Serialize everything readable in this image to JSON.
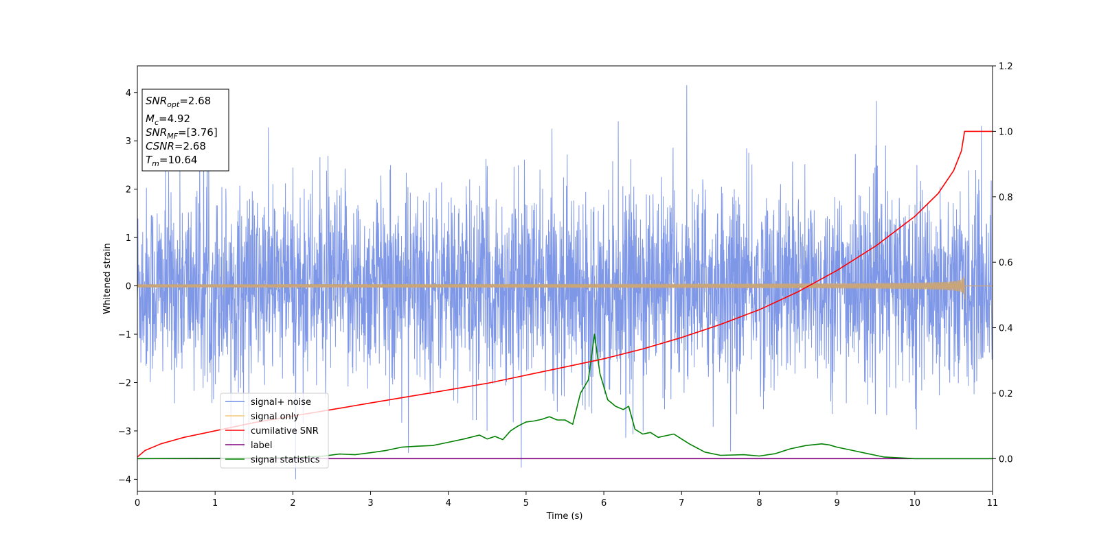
{
  "chart_data": {
    "type": "line",
    "xlabel": "Time (s)",
    "ylabel": "Whitened strain",
    "xlim": [
      0,
      11
    ],
    "ylim_left": [
      -4.25,
      4.55
    ],
    "ylim_right": [
      -0.1,
      1.2
    ],
    "x_ticks": [
      "0",
      "1",
      "2",
      "3",
      "4",
      "5",
      "6",
      "7",
      "8",
      "9",
      "10",
      "11"
    ],
    "y_left_ticks": [
      "−4",
      "−3",
      "−2",
      "−1",
      "0",
      "1",
      "2",
      "3",
      "4"
    ],
    "y_left_tick_values": [
      -4,
      -3,
      -2,
      -1,
      0,
      1,
      2,
      3,
      4
    ],
    "y_right_ticks": [
      "0.0",
      "0.2",
      "0.4",
      "0.6",
      "0.8",
      "1.0",
      "1.2"
    ],
    "y_right_tick_values": [
      0.0,
      0.2,
      0.4,
      0.6,
      0.8,
      1.0,
      1.2
    ],
    "info_box": {
      "snr_opt_base": "SNR",
      "snr_opt_sub": "opt",
      "snr_opt_value": "=2.68",
      "mc_base": "M",
      "mc_sub": "c",
      "mc_value": "=4.92",
      "snr_mf_base": "SNR",
      "snr_mf_sub": "MF",
      "snr_mf_value": "=[3.76]",
      "csnr_base": "CSNR",
      "csnr_value": "=2.68",
      "tm_base": "T",
      "tm_sub": "m",
      "tm_value": "=10.64"
    },
    "legend": [
      {
        "label": "signal+ noise",
        "color": "#6f8de6"
      },
      {
        "label": "signal only",
        "color": "#f5c97a"
      },
      {
        "label": "cumilative SNR",
        "color": "#ff0000"
      },
      {
        "label": "label",
        "color": "#800080"
      },
      {
        "label": "signal statistics",
        "color": "#008000"
      }
    ],
    "legend_position": "lower-left",
    "series": [
      {
        "name": "signal+ noise",
        "axis": "left",
        "color": "#7891e6",
        "noise_std": 1.0,
        "x_range": [
          0,
          11
        ]
      },
      {
        "name": "signal only",
        "axis": "left",
        "color": "#c9a57a",
        "merger_time": 10.64,
        "envelope_end": 0.28
      },
      {
        "name": "cumilative SNR",
        "axis": "right",
        "color": "#ff0000",
        "x": [
          0,
          0.1,
          0.3,
          0.6,
          1.0,
          1.5,
          2.0,
          2.5,
          3.0,
          3.5,
          4.0,
          4.5,
          5.0,
          5.5,
          6.0,
          6.5,
          7.0,
          7.5,
          8.0,
          8.5,
          9.0,
          9.5,
          10.0,
          10.3,
          10.5,
          10.6,
          10.64,
          11.0
        ],
        "y": [
          0.005,
          0.025,
          0.045,
          0.065,
          0.085,
          0.11,
          0.13,
          0.15,
          0.17,
          0.19,
          0.21,
          0.23,
          0.255,
          0.28,
          0.305,
          0.335,
          0.37,
          0.41,
          0.455,
          0.51,
          0.575,
          0.65,
          0.74,
          0.81,
          0.88,
          0.94,
          1.0,
          1.0
        ]
      },
      {
        "name": "label",
        "axis": "right",
        "color": "#800080",
        "x": [
          0,
          11
        ],
        "y": [
          0,
          0
        ]
      },
      {
        "name": "signal statistics",
        "axis": "right",
        "color": "#008000",
        "x": [
          0,
          1.0,
          2.0,
          2.4,
          2.6,
          2.8,
          3.0,
          3.2,
          3.4,
          3.6,
          3.8,
          4.0,
          4.2,
          4.4,
          4.5,
          4.6,
          4.7,
          4.8,
          4.9,
          5.0,
          5.1,
          5.2,
          5.3,
          5.4,
          5.5,
          5.6,
          5.7,
          5.8,
          5.88,
          5.95,
          6.05,
          6.15,
          6.25,
          6.32,
          6.4,
          6.5,
          6.6,
          6.7,
          6.8,
          6.9,
          7.0,
          7.1,
          7.3,
          7.5,
          7.8,
          8.0,
          8.2,
          8.4,
          8.6,
          8.8,
          8.9,
          9.0,
          9.1,
          9.2,
          9.4,
          9.6,
          10.0,
          11.0
        ],
        "y": [
          0.0,
          0.001,
          0.003,
          0.008,
          0.014,
          0.012,
          0.018,
          0.025,
          0.035,
          0.038,
          0.04,
          0.05,
          0.06,
          0.072,
          0.06,
          0.068,
          0.058,
          0.085,
          0.1,
          0.112,
          0.115,
          0.12,
          0.128,
          0.118,
          0.118,
          0.105,
          0.2,
          0.24,
          0.38,
          0.26,
          0.18,
          0.16,
          0.15,
          0.16,
          0.09,
          0.075,
          0.08,
          0.065,
          0.07,
          0.075,
          0.06,
          0.045,
          0.02,
          0.01,
          0.012,
          0.008,
          0.015,
          0.03,
          0.04,
          0.045,
          0.042,
          0.035,
          0.03,
          0.025,
          0.015,
          0.005,
          0.0,
          0.0
        ]
      }
    ]
  }
}
